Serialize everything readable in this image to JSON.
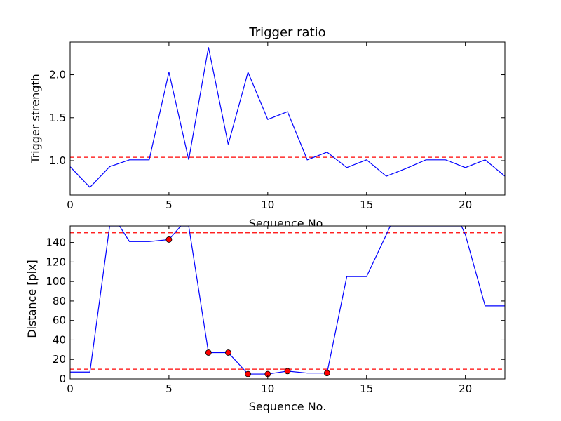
{
  "chart_data": [
    {
      "type": "line",
      "title": "Trigger ratio",
      "xlabel": "Sequence No.",
      "ylabel": "Trigger strength",
      "xlim": [
        0,
        22
      ],
      "ylim": [
        0.6,
        2.38
      ],
      "xticks": [
        "0",
        "5",
        "10",
        "15",
        "20"
      ],
      "yticks": [
        "1.0",
        "1.5",
        "2.0"
      ],
      "ytick_values": [
        1.0,
        1.5,
        2.0
      ],
      "xtick_values": [
        0,
        5,
        10,
        15,
        20
      ],
      "grid": false,
      "series": [
        {
          "color": "#0000ff",
          "x": [
            0,
            1,
            2,
            3,
            4,
            5,
            6,
            7,
            8,
            9,
            10,
            11,
            12,
            13,
            14,
            15,
            16,
            17,
            18,
            19,
            20,
            21,
            22
          ],
          "values": [
            0.93,
            0.69,
            0.93,
            1.01,
            1.01,
            2.03,
            1.01,
            2.32,
            1.19,
            2.03,
            1.48,
            1.57,
            1.01,
            1.1,
            0.92,
            1.01,
            0.82,
            0.91,
            1.01,
            1.01,
            0.92,
            1.01,
            0.82
          ]
        }
      ],
      "hlines": [
        {
          "value": 1.04,
          "color": "#ff0000",
          "style": "dashed"
        }
      ]
    },
    {
      "type": "line",
      "title": "",
      "xlabel": "Sequence No.",
      "ylabel": "Distance [pix]",
      "xlim": [
        0,
        22
      ],
      "ylim": [
        0,
        157
      ],
      "xticks": [
        "0",
        "5",
        "10",
        "15",
        "20"
      ],
      "yticks": [
        "0",
        "20",
        "40",
        "60",
        "80",
        "100",
        "120",
        "140"
      ],
      "ytick_values": [
        0,
        20,
        40,
        60,
        80,
        100,
        120,
        140
      ],
      "xtick_values": [
        0,
        5,
        10,
        15,
        20
      ],
      "grid": false,
      "series": [
        {
          "color": "#0000ff",
          "x": [
            0,
            1,
            2,
            2.5,
            3,
            4,
            5,
            5.6,
            6,
            7,
            8,
            9,
            10,
            11,
            12,
            13,
            14,
            15,
            16,
            16.2,
            19.8,
            20,
            21,
            22
          ],
          "values": [
            7,
            7,
            157,
            157,
            141,
            141,
            143,
            157,
            157,
            27,
            27,
            5,
            5,
            8,
            6,
            6,
            105,
            105,
            148,
            157,
            157,
            148,
            75,
            75
          ]
        }
      ],
      "markers": {
        "color": "#ff0000",
        "x": [
          5,
          7,
          8,
          9,
          10,
          11,
          13
        ],
        "values": [
          143,
          27,
          27,
          5,
          5,
          8,
          6
        ]
      },
      "hlines": [
        {
          "value": 150,
          "color": "#ff0000",
          "style": "dashed"
        },
        {
          "value": 10,
          "color": "#ff0000",
          "style": "dashed"
        }
      ]
    }
  ]
}
